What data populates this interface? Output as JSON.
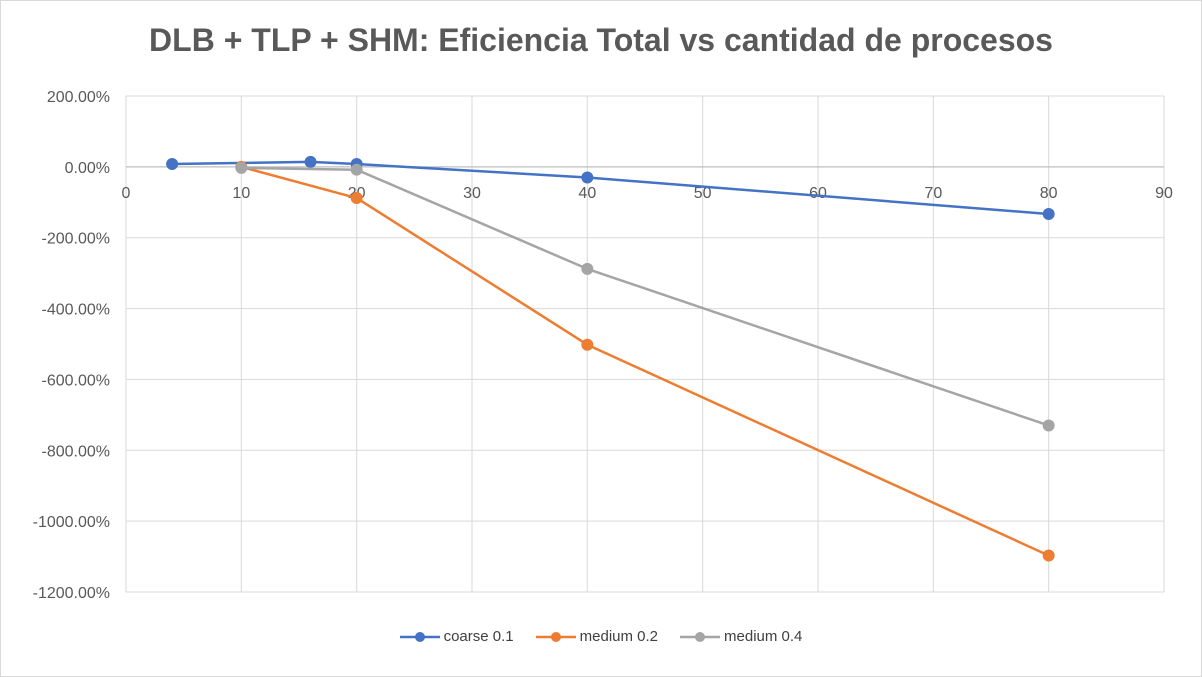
{
  "chart_data": {
    "type": "scatter",
    "title": "DLB + TLP + SHM: Eficiencia Total vs cantidad de procesos",
    "xlabel": "",
    "ylabel": "",
    "xlim": [
      0,
      90
    ],
    "ylim": [
      -1200,
      200
    ],
    "x_ticks": [
      0,
      10,
      20,
      30,
      40,
      50,
      60,
      70,
      80,
      90
    ],
    "y_ticks": [
      200,
      0,
      -200,
      -400,
      -600,
      -800,
      -1000,
      -1200
    ],
    "y_tick_labels": [
      "200.00%",
      "0.00%",
      "-200.00%",
      "-400.00%",
      "-600.00%",
      "-800.00%",
      "-1000.00%",
      "-1200.00%"
    ],
    "grid": true,
    "legend_position": "bottom",
    "series": [
      {
        "name": "coarse 0.1",
        "color": "#4472c4",
        "x": [
          4,
          16,
          20,
          40,
          80
        ],
        "y": [
          8,
          14,
          8,
          -30,
          -133
        ]
      },
      {
        "name": "medium 0.2",
        "color": "#ed7d31",
        "x": [
          10,
          20,
          40,
          80
        ],
        "y": [
          0,
          -88,
          -502,
          -1097
        ]
      },
      {
        "name": "medium 0.4",
        "color": "#a5a5a5",
        "x": [
          10,
          20,
          40,
          80
        ],
        "y": [
          -3,
          -8,
          -288,
          -730
        ]
      }
    ]
  }
}
